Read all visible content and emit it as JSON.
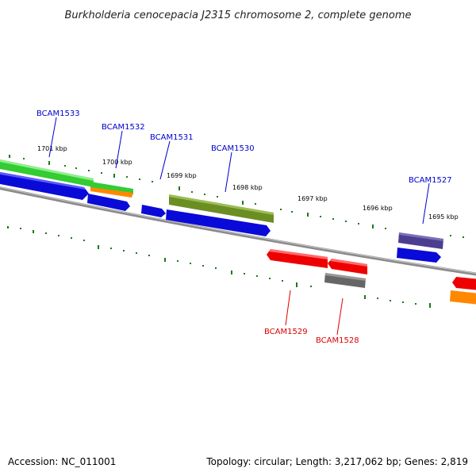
{
  "title": "Burkholderia cenocepacia J2315 chromosome 2, complete genome",
  "footer": {
    "accession": "Accession: NC_011001",
    "topology": "Topology: circular; Length: 3,217,062 bp; Genes: 2,819"
  },
  "scale_labels": [
    "1701 kbp",
    "1700 kbp",
    "1699 kbp",
    "1698 kbp",
    "1697 kbp",
    "1696 kbp",
    "1695 kbp"
  ],
  "gene_labels_top": [
    "BCAM1533",
    "BCAM1532",
    "BCAM1531",
    "BCAM1530",
    "BCAM1527"
  ],
  "gene_labels_bottom": [
    "BCAM1529",
    "BCAM1528"
  ],
  "colors": {
    "backbone": "#888888",
    "tick": "#1a7a1a",
    "blue": "#0a0ad8",
    "green": "#33cc33",
    "orange": "#ff8800",
    "olive": "#6b8e23",
    "purple": "#4b3d8f",
    "red": "#ee0000",
    "gray": "#666666",
    "label_top": "#0000cc",
    "label_bottom": "#dd0000"
  }
}
